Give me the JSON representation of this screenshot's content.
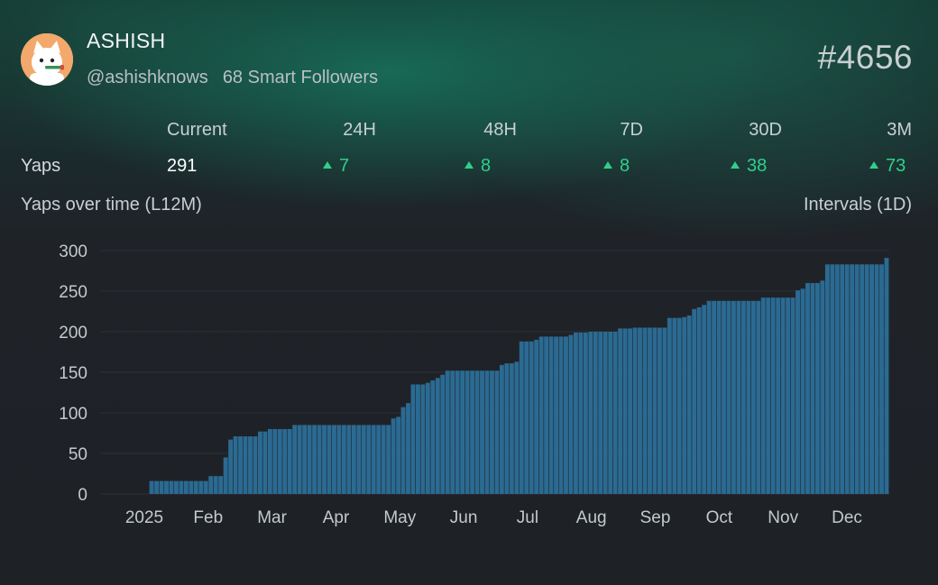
{
  "profile": {
    "name": "ASHISH",
    "handle": "@ashishknows",
    "smart_followers": "68 Smart Followers",
    "rank": "#4656",
    "avatar_icon": "cartoon-cat-avatar-icon"
  },
  "stats": {
    "row_label": "Yaps",
    "current_header": "Current",
    "current_value": "291",
    "periods": [
      {
        "label": "24H",
        "delta": "7"
      },
      {
        "label": "48H",
        "delta": "8"
      },
      {
        "label": "7D",
        "delta": "8"
      },
      {
        "label": "30D",
        "delta": "38"
      },
      {
        "label": "3M",
        "delta": "73"
      }
    ],
    "up_color": "#2fd08a"
  },
  "chart_header": {
    "title": "Yaps over time (L12M)",
    "interval": "Intervals (1D)"
  },
  "chart_data": {
    "type": "bar",
    "title": "Yaps over time (L12M)",
    "xlabel": "",
    "ylabel": "",
    "ylim": [
      0,
      300
    ],
    "yticks": [
      "0",
      "50",
      "100",
      "150",
      "200",
      "250",
      "300"
    ],
    "xticks": [
      "2025",
      "Feb",
      "Mar",
      "Apr",
      "May",
      "Jun",
      "Jul",
      "Aug",
      "Sep",
      "Oct",
      "Nov",
      "Dec"
    ],
    "grid": true,
    "bar_color": "#2b6a92",
    "series": [
      {
        "name": "Yaps",
        "values": [
          0,
          0,
          0,
          0,
          0,
          0,
          0,
          0,
          0,
          0,
          16,
          16,
          16,
          16,
          16,
          16,
          16,
          16,
          16,
          16,
          16,
          16,
          22,
          22,
          22,
          45,
          67,
          71,
          71,
          71,
          71,
          71,
          77,
          77,
          80,
          80,
          80,
          80,
          80,
          85,
          85,
          85,
          85,
          85,
          85,
          85,
          85,
          85,
          85,
          85,
          85,
          85,
          85,
          85,
          85,
          85,
          85,
          85,
          85,
          93,
          95,
          107,
          112,
          135,
          135,
          135,
          137,
          140,
          143,
          147,
          152,
          152,
          152,
          152,
          152,
          152,
          152,
          152,
          152,
          152,
          152,
          159,
          161,
          161,
          163,
          188,
          188,
          188,
          190,
          194,
          194,
          194,
          194,
          194,
          194,
          196,
          199,
          199,
          199,
          200,
          200,
          200,
          200,
          200,
          200,
          204,
          204,
          204,
          205,
          205,
          205,
          205,
          205,
          205,
          205,
          217,
          217,
          217,
          218,
          220,
          228,
          230,
          233,
          238,
          238,
          238,
          238,
          238,
          238,
          238,
          238,
          238,
          238,
          238,
          242,
          242,
          242,
          242,
          242,
          242,
          242,
          251,
          253,
          260,
          260,
          260,
          263,
          283,
          283,
          283,
          283,
          283,
          283,
          283,
          283,
          283,
          283,
          283,
          283,
          291
        ]
      }
    ]
  }
}
